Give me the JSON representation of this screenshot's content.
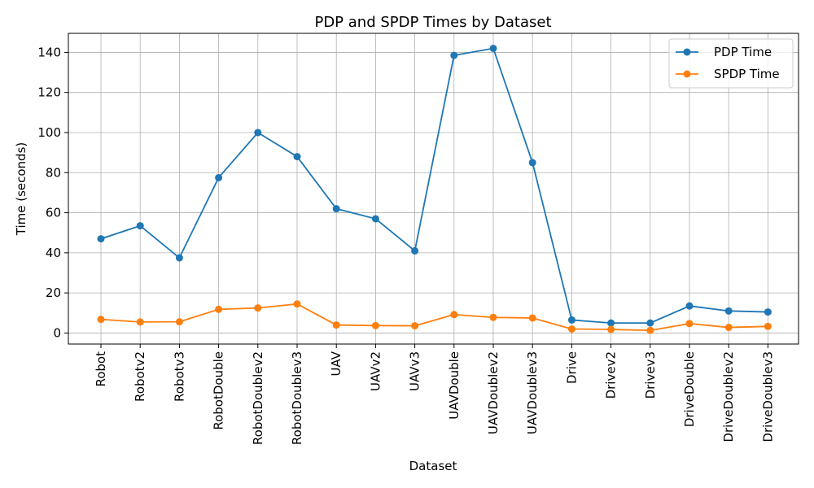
{
  "chart_data": {
    "type": "line",
    "title": "PDP and SPDP Times by Dataset",
    "xlabel": "Dataset",
    "ylabel": "Time (seconds)",
    "categories": [
      "Robot",
      "Robotv2",
      "Robotv3",
      "RobotDouble",
      "RobotDoublev2",
      "RobotDoublev3",
      "UAV",
      "UAVv2",
      "UAVv3",
      "UAVDouble",
      "UAVDoublev2",
      "UAVDoublev3",
      "Drive",
      "Drivev2",
      "Drivev3",
      "DriveDouble",
      "DriveDoublev2",
      "DriveDoublev3"
    ],
    "series": [
      {
        "name": "PDP Time",
        "color": "#1f77b4",
        "values": [
          47.0,
          53.5,
          37.5,
          77.5,
          100.0,
          88.0,
          62.0,
          57.0,
          41.0,
          138.5,
          142.0,
          85.0,
          6.5,
          5.0,
          5.0,
          13.5,
          11.0,
          10.5
        ]
      },
      {
        "name": "SPDP Time",
        "color": "#ff7f0e",
        "values": [
          6.8,
          5.5,
          5.6,
          11.8,
          12.5,
          14.5,
          4.0,
          3.7,
          3.6,
          9.2,
          7.8,
          7.5,
          2.0,
          1.8,
          1.3,
          4.7,
          2.8,
          3.3
        ]
      }
    ],
    "yticks": [
      "0",
      "20",
      "40",
      "60",
      "80",
      "100",
      "120",
      "140"
    ],
    "ylim": [
      -5.5,
      149.5
    ],
    "grid": true,
    "legend_position": "top-right"
  }
}
